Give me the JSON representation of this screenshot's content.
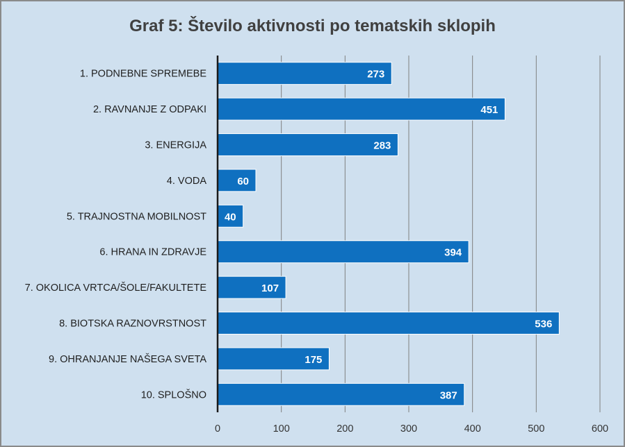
{
  "chart_data": {
    "type": "bar",
    "orientation": "horizontal",
    "title": "Graf 5: Število aktivnosti po tematskih sklopih",
    "xlabel": "",
    "ylabel": "",
    "categories": [
      "1. PODNEBNE SPREMEBE",
      "2. RAVNANJE Z ODPAKI",
      "3. ENERGIJA",
      "4. VODA",
      "5. TRAJNOSTNA MOBILNOST",
      "6. HRANA IN ZDRAVJE",
      "7. OKOLICA VRTCA/ŠOLE/FAKULTETE",
      "8. BIOTSKA RAZNOVRSTNOST",
      "9. OHRANJANJE NAŠEGA SVETA",
      "10. SPLOŠNO"
    ],
    "values": [
      273,
      451,
      283,
      60,
      40,
      394,
      107,
      536,
      175,
      387
    ],
    "xlim": [
      0,
      600
    ],
    "xticks": [
      0,
      100,
      200,
      300,
      400,
      500,
      600
    ],
    "grid": true,
    "legend": "none",
    "colors": {
      "bar": "#0f70c0",
      "background": "#cfe0ef",
      "grid": "#7f7f7f"
    }
  }
}
